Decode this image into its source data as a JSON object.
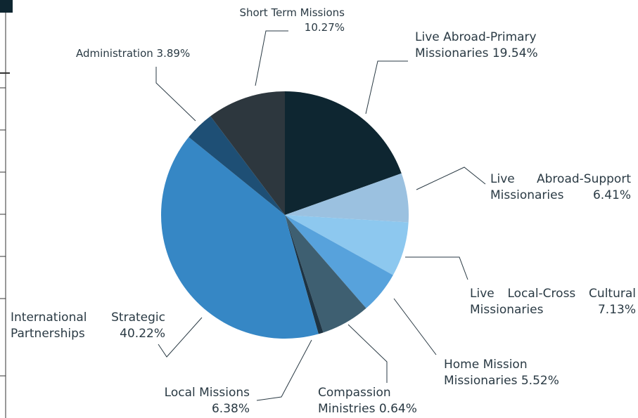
{
  "chart_data": {
    "type": "pie",
    "categories": [
      "Live Abroad-Primary Missionaries",
      "Live Abroad-Support Missionaries",
      "Live Local-Cross Cultural Missionaries",
      "Home Mission Missionaries",
      "Local Missions",
      "Compassion Ministries",
      "International Strategic Partnerships",
      "Administration",
      "Short Term Missions"
    ],
    "values": [
      19.54,
      6.41,
      7.13,
      5.52,
      6.38,
      0.64,
      40.22,
      3.89,
      10.27
    ],
    "value_labels": [
      "19.54%",
      "6.41%",
      "7.13%",
      "5.52%",
      "6.38%",
      "0.64%",
      "40.22%",
      "3.89%",
      "10.27%"
    ],
    "colors": [
      "#0e2631",
      "#9bc1e0",
      "#8dc8ef",
      "#57a2dc",
      "#3e5f71",
      "#1e3342",
      "#3687c5",
      "#1e4f75",
      "#2d373e"
    ]
  }
}
